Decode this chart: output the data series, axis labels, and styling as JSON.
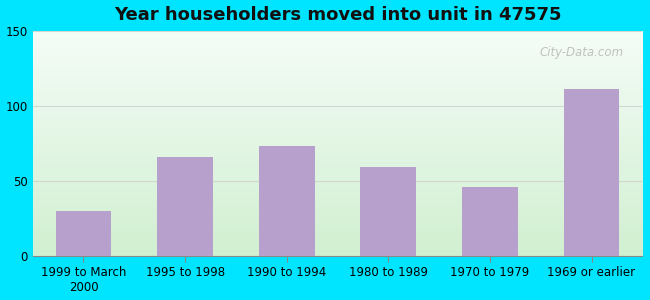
{
  "title": "Year householders moved into unit in 47575",
  "categories": [
    "1999 to March\n2000",
    "1995 to 1998",
    "1990 to 1994",
    "1980 to 1989",
    "1970 to 1979",
    "1969 or earlier"
  ],
  "values": [
    30,
    66,
    73,
    59,
    46,
    111
  ],
  "bar_color": "#b8a0cc",
  "ylim": [
    0,
    150
  ],
  "yticks": [
    0,
    50,
    100,
    150
  ],
  "background_outer": "#00e5ff",
  "bg_color_top_left": "#c8eac8",
  "bg_color_top_right": "#dff0f5",
  "bg_color_bottom": "#e8f5e0",
  "grid_color": "#d0d8d0",
  "title_fontsize": 13,
  "tick_fontsize": 8.5,
  "watermark": "City-Data.com"
}
